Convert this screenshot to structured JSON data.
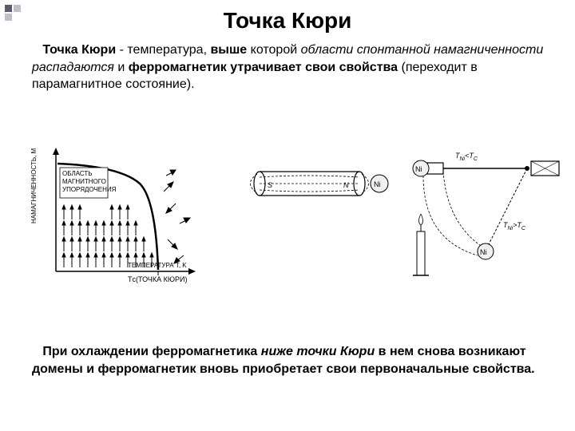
{
  "title": "Точка Кюри",
  "p1": {
    "lead_b": "Точка Кюри",
    "t1": " - температура, ",
    "b1": "выше",
    "t2": " которой ",
    "i1": "области спонтанной намагниченности распадаются",
    "t3": " и ",
    "b2": "ферромагнетик утрачивает свои свойства",
    "t4": " (переходит в парамагнитное состояние)."
  },
  "p2": {
    "t1": "При охлаждении ферромагнетика ",
    "i1": "ниже точки Кюри",
    "t2": " в нем снова ",
    "b1": "возникают домены",
    "t3": " и ферромагнетик ",
    "b2": "вновь приобретает свои первоначальные свойства."
  },
  "chart": {
    "ylabel": "НАМАГНИЧЕННОСТЬ, M",
    "region": "ОБЛАСТЬ МАГНИТНОГО УПОРЯДОЧЕНИЯ",
    "xlabel": "ТЕМПЕРАТУРА T, K",
    "tc": "Tс",
    "tc_label": "(ТОЧКА КЮРИ)"
  },
  "mid": {
    "s": "S",
    "n": "N",
    "ni": "Ni"
  },
  "right": {
    "eq1a": "T",
    "eq1b": "Ni",
    "eq1c": "<T",
    "eq1d": "C",
    "eq2a": "T",
    "eq2b": "Ni",
    "eq2c": ">T",
    "eq2d": "C",
    "ni": "Ni"
  },
  "colors": {
    "bg": "#ffffff",
    "text": "#000000",
    "bullet_dark": "#5a5a68",
    "bullet_light": "#c0c0c8"
  }
}
